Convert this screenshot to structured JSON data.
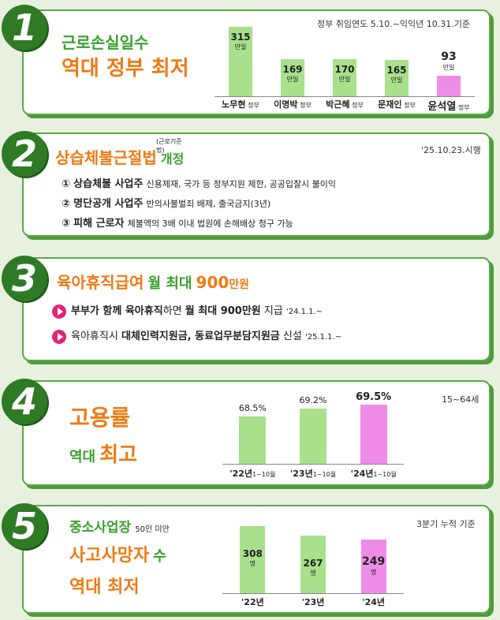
{
  "s1": {
    "num": "1",
    "title1": "근로손실일수",
    "title2": "역대 정부 최저",
    "note": "정부 취임연도 5.10.~익익년 10.31.기준",
    "chart_data": {
      "type": "bar",
      "categories": [
        "노무현",
        "이명박",
        "박근혜",
        "문재인",
        "윤석열"
      ],
      "suffix": "정부",
      "values": [
        315,
        169,
        170,
        165,
        93
      ],
      "unit": "만일",
      "ylim": [
        0,
        330
      ],
      "colors": [
        "#a8e08c",
        "#a8e08c",
        "#a8e08c",
        "#a8e08c",
        "#ee8ce8"
      ]
    }
  },
  "s2": {
    "num": "2",
    "title_main": "상습체불근절법",
    "title_super": "(근로기준법)",
    "title_tail": "개정",
    "note": "'25.10.23.시행",
    "items": [
      {
        "bullet": "①",
        "head": "상습체불 사업주",
        "body": "신용제재, 국가 등 정부지원 제한, 공공입찰시 불이익"
      },
      {
        "bullet": "②",
        "head": "명단공개 사업주",
        "body": "반의사불벌죄 배제, 출국금지(3년)"
      },
      {
        "bullet": "③",
        "head": "피해 근로자",
        "body": "체불액의 3배 이내 법원에 손해배상 청구 가능"
      }
    ]
  },
  "s3": {
    "num": "3",
    "title_a": "육아휴직급여",
    "title_b": "월 최대",
    "title_c": "900",
    "title_d": "만원",
    "line1": {
      "a": "부부가 함께 육아휴직",
      "b": "하면 ",
      "c": "월 최대 900만원",
      "d": " 지급 ",
      "e": "'24.1.1.~"
    },
    "line2": {
      "a": "육아휴직시 ",
      "b": "대체인력지원금, 동료업무분담지원금",
      "c": " 신설 ",
      "d": "'25.1.1.~"
    }
  },
  "s4": {
    "num": "4",
    "title1": "고용률",
    "title2a": "역대",
    "title2b": "최고",
    "note": "15~64세",
    "chart_data": {
      "type": "bar",
      "categories": [
        "'22년",
        "'23년",
        "'24년"
      ],
      "sublabel": "1~10월",
      "values": [
        68.5,
        69.2,
        69.5
      ],
      "labels": [
        "68.5%",
        "69.2%",
        "69.5%"
      ],
      "colors": [
        "#a8e08c",
        "#a8e08c",
        "#ee8ce8"
      ]
    }
  },
  "s5": {
    "num": "5",
    "title1": "중소사업장",
    "title1_small": "50인 미만",
    "title2a": "사고사망자",
    "title2b": "수",
    "title3": "역대 최저",
    "note": "3분기 누적 기준",
    "chart_data": {
      "type": "bar",
      "categories": [
        "'22년",
        "'23년",
        "'24년"
      ],
      "values": [
        308,
        267,
        249
      ],
      "unit": "명",
      "ylim": [
        0,
        320
      ],
      "colors": [
        "#a8e08c",
        "#a8e08c",
        "#ee8ce8"
      ]
    }
  }
}
